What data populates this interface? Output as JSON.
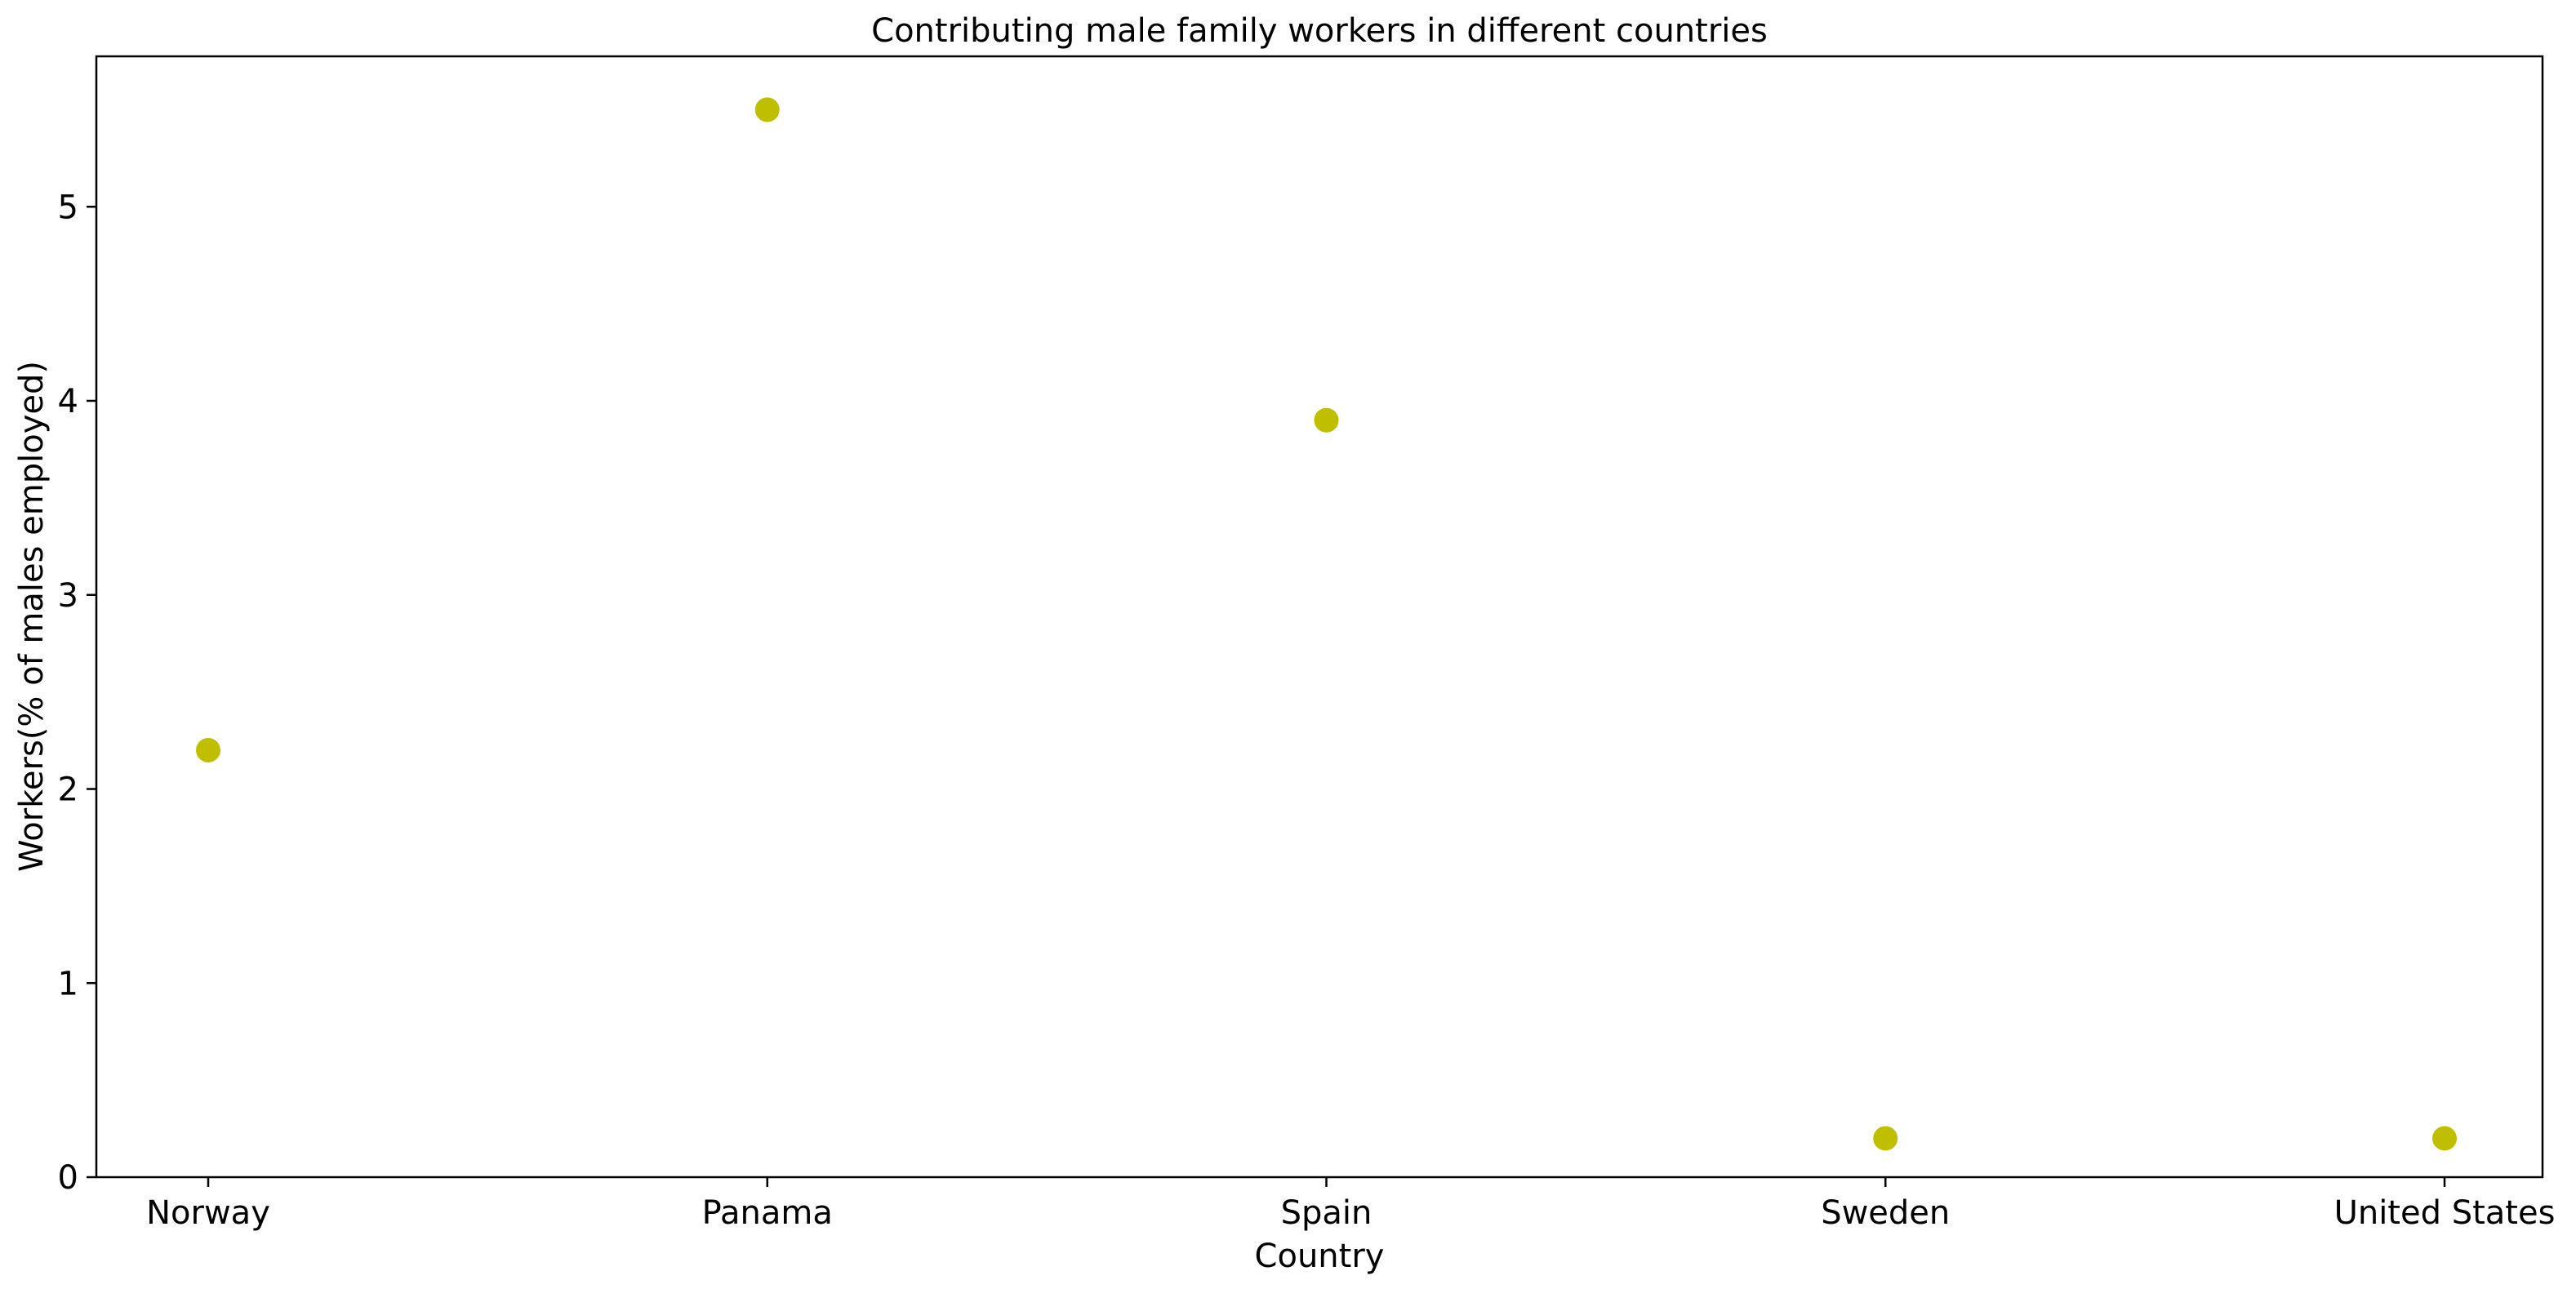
{
  "chart_data": {
    "type": "scatter",
    "title": "Contributing male family workers in different countries",
    "xlabel": "Country",
    "ylabel": "Workers(% of males employed)",
    "categories": [
      "Norway",
      "Panama",
      "Spain",
      "Sweden",
      "United States"
    ],
    "series": [
      {
        "values": [
          2.2,
          5.5,
          3.9,
          0.2,
          0.2
        ]
      }
    ],
    "ylim": [
      0,
      5.775
    ],
    "yticks": [
      0,
      1,
      2,
      3,
      4,
      5
    ],
    "grid": false,
    "marker_color": "#bfbf00"
  }
}
